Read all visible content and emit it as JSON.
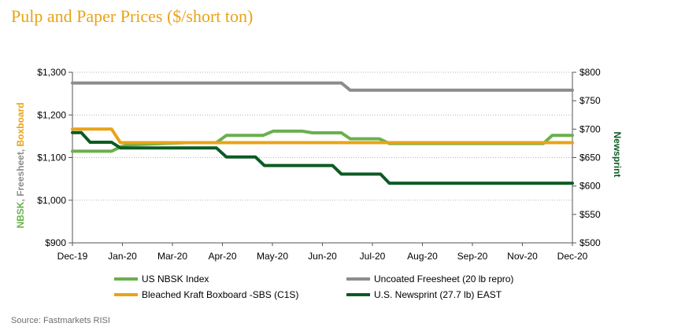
{
  "title": "Pulp and Paper Prices ($/short ton)",
  "source": "Source:  Fastmarkets RISI",
  "colors": {
    "title": "#e8a317",
    "nbsk": "#6ab04c",
    "freesheet": "#8c8c8c",
    "boxboard": "#e8a317",
    "newsprint": "#0b5b23"
  },
  "chart_data": {
    "type": "line",
    "title": "Pulp and Paper Prices ($/short ton)",
    "x_tick_labels": [
      "Dec-19",
      "Jan-20",
      "Mar-20",
      "Apr-20",
      "May-20",
      "Jun-20",
      "Jul-20",
      "Aug-20",
      "Sep-20",
      "Nov-20",
      "Dec-20"
    ],
    "x_range": [
      "2019-12-01",
      "2020-12-31"
    ],
    "y_left": {
      "label_parts": [
        {
          "text": "NBSK",
          "color": "#6ab04c"
        },
        {
          "text": ", ",
          "color": "#8c8c8c"
        },
        {
          "text": "Freesheet",
          "color": "#8c8c8c"
        },
        {
          "text": ", ",
          "color": "#8c8c8c"
        },
        {
          "text": "Boxboard",
          "color": "#e8a317"
        }
      ],
      "range": [
        900,
        1300
      ],
      "ticks": [
        900,
        1000,
        1100,
        1200,
        1300
      ],
      "tick_labels": [
        "$900",
        "$1,000",
        "$1,100",
        "$1,200",
        "$1,300"
      ]
    },
    "y_right": {
      "label": "Newsprint",
      "range": [
        500,
        800
      ],
      "ticks": [
        500,
        550,
        600,
        650,
        700,
        750,
        800
      ],
      "tick_labels": [
        "$500",
        "$550",
        "$600",
        "$650",
        "$700",
        "$750",
        "$800"
      ]
    },
    "grid": "horizontal dotted",
    "legend_position": "bottom",
    "series": [
      {
        "name": "US NBSK Index",
        "axis": "left",
        "color": "#6ab04c",
        "points": [
          [
            "2019-12-01",
            1115
          ],
          [
            "2020-01-01",
            1115
          ],
          [
            "2020-01-08",
            1125
          ],
          [
            "2020-01-15",
            1130
          ],
          [
            "2020-03-01",
            1135
          ],
          [
            "2020-03-24",
            1135
          ],
          [
            "2020-04-01",
            1152
          ],
          [
            "2020-04-30",
            1152
          ],
          [
            "2020-05-08",
            1162
          ],
          [
            "2020-05-31",
            1162
          ],
          [
            "2020-06-08",
            1158
          ],
          [
            "2020-07-01",
            1158
          ],
          [
            "2020-07-08",
            1144
          ],
          [
            "2020-07-31",
            1144
          ],
          [
            "2020-08-08",
            1133
          ],
          [
            "2020-12-08",
            1133
          ],
          [
            "2020-12-15",
            1152
          ],
          [
            "2020-12-31",
            1152
          ]
        ]
      },
      {
        "name": "Uncoated Freesheet (20 lb repro)",
        "axis": "left",
        "color": "#8c8c8c",
        "points": [
          [
            "2019-12-01",
            1275
          ],
          [
            "2020-07-01",
            1275
          ],
          [
            "2020-07-08",
            1258
          ],
          [
            "2020-12-31",
            1258
          ]
        ]
      },
      {
        "name": "Bleached Kraft Boxboard -SBS (C1S)",
        "axis": "left",
        "color": "#e8a317",
        "points": [
          [
            "2019-12-01",
            1167
          ],
          [
            "2020-01-01",
            1167
          ],
          [
            "2020-01-08",
            1135
          ],
          [
            "2020-12-31",
            1135
          ]
        ]
      },
      {
        "name": "U.S. Newsprint (27.7 lb) EAST",
        "axis": "right",
        "color": "#0b5b23",
        "points": [
          [
            "2019-12-01",
            694
          ],
          [
            "2019-12-08",
            694
          ],
          [
            "2019-12-15",
            677
          ],
          [
            "2020-01-01",
            677
          ],
          [
            "2020-01-08",
            667
          ],
          [
            "2020-03-24",
            667
          ],
          [
            "2020-04-01",
            651
          ],
          [
            "2020-04-24",
            651
          ],
          [
            "2020-05-01",
            636
          ],
          [
            "2020-06-24",
            636
          ],
          [
            "2020-07-01",
            621
          ],
          [
            "2020-08-01",
            621
          ],
          [
            "2020-08-08",
            605
          ],
          [
            "2020-12-31",
            605
          ]
        ]
      }
    ]
  }
}
